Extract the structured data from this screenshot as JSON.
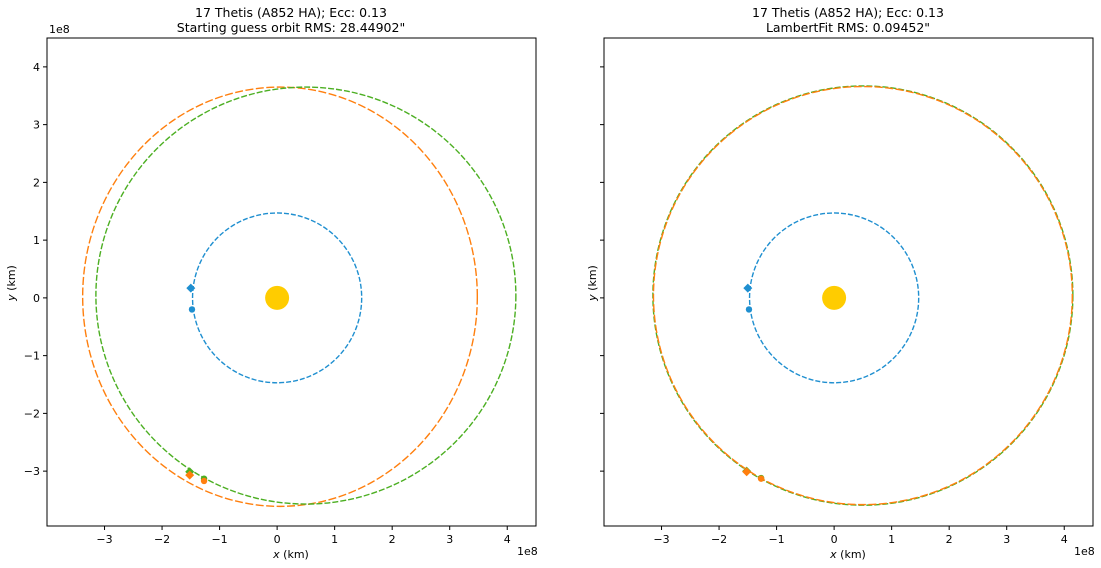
{
  "chart_data": [
    {
      "type": "scatter",
      "title_line1": "17 Thetis (A852 HA); Ecc: 0.13",
      "title_line2": "Starting guess orbit RMS: 28.44902\"",
      "xlabel_var": "x",
      "xlabel_unit": " (km)",
      "ylabel_var": "y",
      "ylabel_unit": " (km)",
      "x_offset_text": "1e8",
      "y_offset_text": "1e8",
      "xlim": [
        -4.0,
        4.5
      ],
      "ylim": [
        -3.95,
        4.5
      ],
      "xticks": [
        -3,
        -2,
        -1,
        0,
        1,
        2,
        3,
        4
      ],
      "xtick_labels": [
        "−3",
        "−2",
        "−1",
        "0",
        "1",
        "2",
        "3",
        "4"
      ],
      "yticks": [
        -3,
        -2,
        -1,
        0,
        1,
        2,
        3,
        4
      ],
      "ytick_labels": [
        "−3",
        "−2",
        "−1",
        "0",
        "1",
        "2",
        "3",
        "4"
      ],
      "show_ytick_labels": true,
      "grid": false,
      "sun": {
        "x": 0,
        "y": 0,
        "color": "#ffcc00"
      },
      "orbits": [
        {
          "cx": 0.0,
          "cy": 0.0,
          "rx": 1.47,
          "ry": 1.47,
          "color": "#1f8fd0",
          "dash": "5,2"
        },
        {
          "cx": 0.05,
          "cy": 0.02,
          "rx": 3.43,
          "ry": 3.63,
          "color": "#ff7f0e",
          "dash": "8,2.5"
        },
        {
          "cx": 0.5,
          "cy": 0.04,
          "rx": 3.65,
          "ry": 3.61,
          "color": "#4caf22",
          "dash": "6,2"
        }
      ],
      "markers": [
        {
          "x": -1.5,
          "y": 0.17,
          "shape": "diamond",
          "color": "#1f8fd0"
        },
        {
          "x": -1.48,
          "y": -0.2,
          "shape": "circle",
          "color": "#1f8fd0"
        },
        {
          "x": -1.52,
          "y": -3.01,
          "shape": "diamond",
          "color": "#4caf22"
        },
        {
          "x": -1.27,
          "y": -3.13,
          "shape": "circle",
          "color": "#4caf22"
        },
        {
          "x": -1.52,
          "y": -3.07,
          "shape": "diamond",
          "color": "#ff7f0e"
        },
        {
          "x": -1.27,
          "y": -3.17,
          "shape": "circle",
          "color": "#ff7f0e"
        }
      ]
    },
    {
      "type": "scatter",
      "title_line1": "17 Thetis (A852 HA); Ecc: 0.13",
      "title_line2": "LambertFit RMS: 0.09452\"",
      "xlabel_var": "x",
      "xlabel_unit": " (km)",
      "ylabel_var": "y",
      "ylabel_unit": " (km)",
      "x_offset_text": "1e8",
      "y_offset_text": "",
      "xlim": [
        -4.0,
        4.5
      ],
      "ylim": [
        -3.95,
        4.5
      ],
      "xticks": [
        -3,
        -2,
        -1,
        0,
        1,
        2,
        3,
        4
      ],
      "xtick_labels": [
        "−3",
        "−2",
        "−1",
        "0",
        "1",
        "2",
        "3",
        "4"
      ],
      "yticks": [
        -3,
        -2,
        -1,
        0,
        1,
        2,
        3,
        4
      ],
      "ytick_labels": [],
      "show_ytick_labels": false,
      "grid": false,
      "sun": {
        "x": 0,
        "y": 0,
        "color": "#ffcc00"
      },
      "orbits": [
        {
          "cx": 0.0,
          "cy": 0.0,
          "rx": 1.47,
          "ry": 1.47,
          "color": "#1f8fd0",
          "dash": "5,2"
        },
        {
          "cx": 0.5,
          "cy": 0.04,
          "rx": 3.65,
          "ry": 3.63,
          "color": "#4caf22",
          "dash": "6,2"
        },
        {
          "cx": 0.5,
          "cy": 0.04,
          "rx": 3.64,
          "ry": 3.62,
          "color": "#ff7f0e",
          "dash": "8,2.5"
        }
      ],
      "markers": [
        {
          "x": -1.5,
          "y": 0.17,
          "shape": "diamond",
          "color": "#1f8fd0"
        },
        {
          "x": -1.48,
          "y": -0.2,
          "shape": "circle",
          "color": "#1f8fd0"
        },
        {
          "x": -1.52,
          "y": -3.0,
          "shape": "diamond",
          "color": "#4caf22"
        },
        {
          "x": -1.27,
          "y": -3.12,
          "shape": "circle",
          "color": "#4caf22"
        },
        {
          "x": -1.52,
          "y": -3.01,
          "shape": "diamond",
          "color": "#ff7f0e"
        },
        {
          "x": -1.27,
          "y": -3.13,
          "shape": "circle",
          "color": "#ff7f0e"
        }
      ]
    }
  ]
}
